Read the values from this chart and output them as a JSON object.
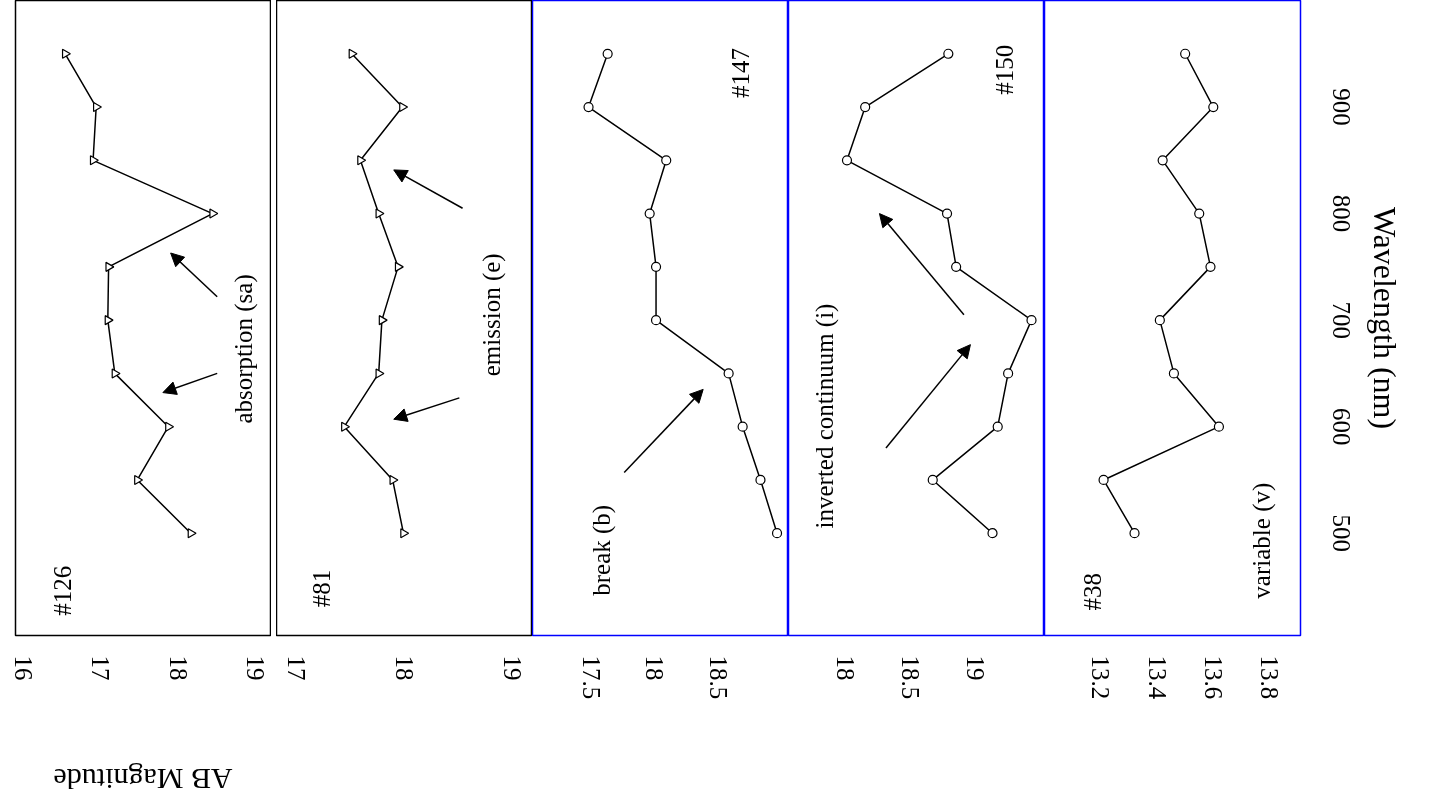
{
  "chart_data": [
    {
      "type": "line",
      "values": [
        500,
        550,
        600,
        650,
        700,
        750,
        800,
        850,
        900,
        950
      ],
      "x": [
        18.16,
        17.47,
        17.87,
        17.18,
        17.09,
        17.1,
        18.44,
        16.9,
        16.94,
        16.54
      ],
      "color": "#000000",
      "marker": "triangle",
      "ylim": [
        404,
        1000
      ],
      "xlim": [
        15.9,
        19.2
      ],
      "xticks": [
        16,
        17,
        18,
        19
      ],
      "tick_labels": "x",
      "grid": false,
      "xlabel": "AB Magnitude",
      "annotations": [
        "#126",
        "absorption (sa)"
      ]
    },
    {
      "type": "line",
      "values": [
        500,
        550,
        600,
        650,
        700,
        750,
        800,
        850,
        900,
        950
      ],
      "x": [
        17.99,
        17.89,
        17.44,
        17.76,
        17.79,
        17.94,
        17.76,
        17.59,
        17.98,
        17.51
      ],
      "color": "#000000",
      "marker": "triangle",
      "ylim": [
        404,
        1000
      ],
      "xlim": [
        16.81,
        19.19
      ],
      "xticks": [
        17,
        18,
        19
      ],
      "tick_labels": "x",
      "grid": false,
      "annotations": [
        "#81",
        "emission (e)"
      ]
    },
    {
      "type": "line",
      "values": [
        500,
        550,
        600,
        650,
        700,
        750,
        800,
        850,
        900,
        950
      ],
      "x": [
        18.96,
        18.83,
        18.69,
        18.58,
        18.01,
        18.01,
        17.96,
        18.09,
        17.48,
        17.63
      ],
      "color": "#000000",
      "marker": "circle",
      "ylim": [
        404,
        1000
      ],
      "xlim": [
        17.04,
        19.05
      ],
      "xticks": [
        17.5,
        18,
        18.5
      ],
      "tick_labels": "x",
      "grid": false,
      "annotations": [
        "break (b)",
        "#147"
      ]
    },
    {
      "type": "line",
      "values": [
        500,
        550,
        600,
        650,
        700,
        750,
        800,
        850,
        900,
        950
      ],
      "x": [
        19.13,
        18.67,
        19.17,
        19.25,
        19.43,
        18.85,
        18.78,
        18.01,
        18.15,
        18.79
      ],
      "color": "#000000",
      "marker": "circle",
      "ylim": [
        404,
        1000
      ],
      "xlim": [
        17.56,
        19.53
      ],
      "xticks": [
        18,
        18.5,
        19
      ],
      "tick_labels": "x",
      "grid": false,
      "annotations": [
        "inverted continuum (i)",
        "#150"
      ]
    },
    {
      "type": "line",
      "values": [
        500,
        550,
        600,
        650,
        700,
        750,
        800,
        850,
        900,
        950
      ],
      "x": [
        13.32,
        13.21,
        13.62,
        13.46,
        13.41,
        13.59,
        13.55,
        13.42,
        13.6,
        13.5
      ],
      "color": "#000000",
      "marker": "circle",
      "ylim": [
        404,
        1000
      ],
      "yticks": [
        500,
        600,
        700,
        800,
        900
      ],
      "xlim": [
        13.0,
        13.91
      ],
      "xticks": [
        13.2,
        13.4,
        13.6,
        13.8
      ],
      "grid": false,
      "ylabel": "Wavelength (nm)",
      "annotations": [
        "#38",
        "variable (v)"
      ]
    }
  ]
}
